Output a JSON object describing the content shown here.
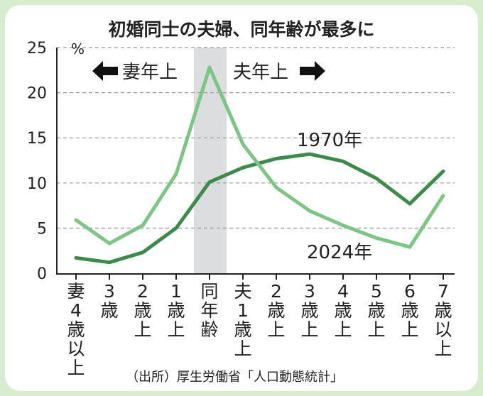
{
  "chart_data": {
    "type": "line",
    "title": "初婚同士の夫婦、同年齢が最多に",
    "ylabel": "%",
    "ylim": [
      0,
      25
    ],
    "yticks": [
      0,
      5,
      10,
      15,
      20,
      25
    ],
    "categories": [
      "妻4歳以上",
      "3歳",
      "2歳上",
      "1歳上",
      "同年齢",
      "夫1歳上",
      "2歳上",
      "3歳上",
      "4歳上",
      "5歳上",
      "6歳上",
      "7歳以上"
    ],
    "series": [
      {
        "name": "1970年",
        "color": "#3e8a4a",
        "values": [
          1.7,
          1.2,
          2.3,
          5.0,
          10.1,
          11.7,
          12.7,
          13.2,
          12.4,
          10.5,
          7.7,
          11.3
        ]
      },
      {
        "name": "2024年",
        "color": "#7cc584",
        "values": [
          5.9,
          3.3,
          5.3,
          11.0,
          22.8,
          14.3,
          9.5,
          6.9,
          5.3,
          3.9,
          2.9,
          8.6
        ]
      }
    ],
    "highlight_category": "同年齢",
    "annotations": {
      "left": "妻年上",
      "right": "夫年上"
    },
    "source": "（出所）厚生労働省「人口動態統計」"
  },
  "colors": {
    "page_bg": "#d8eccf",
    "highlight": "#dcdddf",
    "text": "#222222"
  }
}
